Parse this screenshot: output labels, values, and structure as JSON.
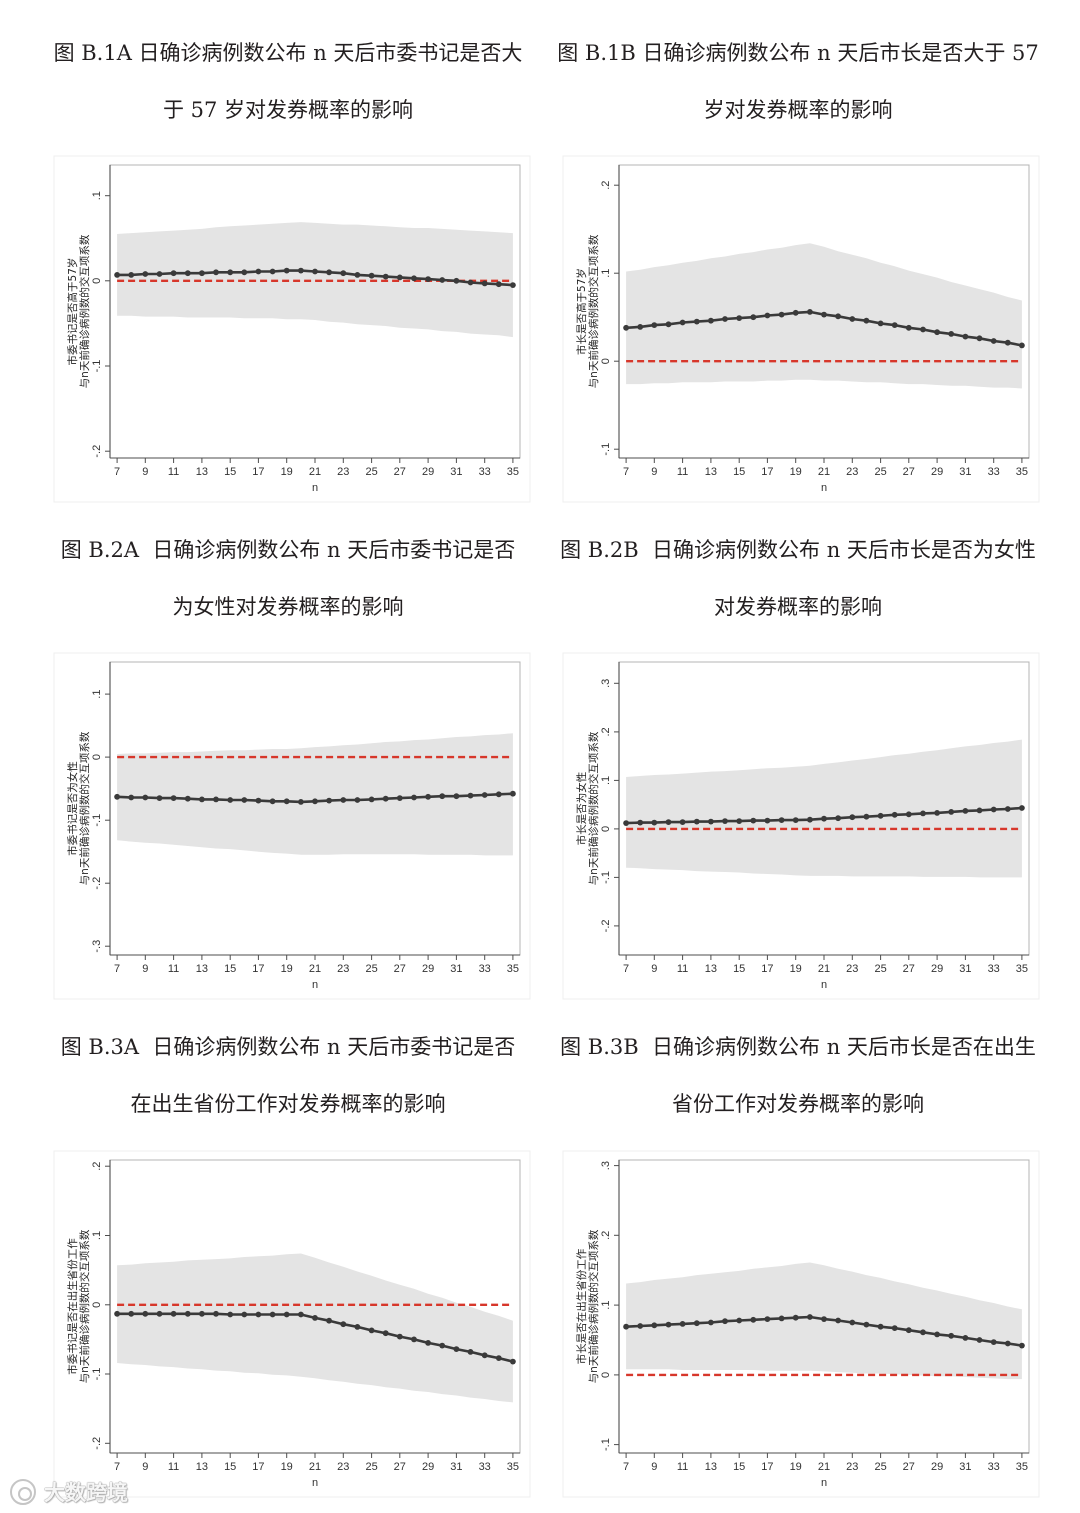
{
  "watermark": "大数跨境",
  "colors": {
    "estimate": "#3a3a3a",
    "ci_band": "#e4e4e4",
    "reference": "#d7372b",
    "axis": "#4d4d4d",
    "plot_frame": "#b4b4b4"
  },
  "chart_data": [
    {
      "type": "line",
      "title_lines": [
        "图 B.1A 日确诊病例数公布 n 天后市委书记是否大",
        "于 57 岁对发券概率的影响"
      ],
      "xlabel": "n",
      "ylabel_lines": [
        "市委书记是否高于57岁",
        "与n天前确诊病例数的交互项系数"
      ],
      "x": [
        7,
        8,
        9,
        10,
        11,
        12,
        13,
        14,
        15,
        16,
        17,
        18,
        19,
        20,
        21,
        22,
        23,
        24,
        25,
        26,
        27,
        28,
        29,
        30,
        31,
        32,
        33,
        34,
        35
      ],
      "xticks": [
        7,
        9,
        11,
        13,
        15,
        17,
        19,
        21,
        23,
        25,
        27,
        29,
        31,
        33,
        35
      ],
      "yticks": [
        {
          "value": 0.1,
          "label": ".1"
        },
        {
          "value": 0,
          "label": "0"
        },
        {
          "value": -0.1,
          "label": "-.1"
        },
        {
          "value": -0.2,
          "label": "-.2"
        }
      ],
      "xlim": [
        6.5,
        35.5
      ],
      "ylim": [
        -0.208,
        0.136
      ],
      "reference_line": 0,
      "series": [
        {
          "values": [
            0.007,
            0.007,
            0.008,
            0.008,
            0.009,
            0.009,
            0.009,
            0.01,
            0.01,
            0.01,
            0.011,
            0.011,
            0.012,
            0.012,
            0.011,
            0.01,
            0.009,
            0.007,
            0.006,
            0.005,
            0.004,
            0.003,
            0.002,
            0.001,
            0.0,
            -0.002,
            -0.003,
            -0.004,
            -0.005
          ],
          "ci_upper": [
            0.055,
            0.056,
            0.057,
            0.058,
            0.059,
            0.06,
            0.061,
            0.063,
            0.064,
            0.065,
            0.066,
            0.067,
            0.068,
            0.069,
            0.068,
            0.067,
            0.066,
            0.066,
            0.065,
            0.064,
            0.063,
            0.062,
            0.062,
            0.061,
            0.06,
            0.059,
            0.058,
            0.057,
            0.056
          ],
          "ci_lower": [
            -0.041,
            -0.041,
            -0.042,
            -0.042,
            -0.042,
            -0.043,
            -0.043,
            -0.043,
            -0.043,
            -0.044,
            -0.044,
            -0.044,
            -0.045,
            -0.045,
            -0.046,
            -0.048,
            -0.049,
            -0.051,
            -0.052,
            -0.053,
            -0.055,
            -0.056,
            -0.057,
            -0.059,
            -0.06,
            -0.062,
            -0.063,
            -0.064,
            -0.066
          ]
        }
      ]
    },
    {
      "type": "line",
      "title_lines": [
        "图 B.1B 日确诊病例数公布 n 天后市长是否大于 57",
        "岁对发券概率的影响"
      ],
      "xlabel": "n",
      "ylabel_lines": [
        "市长是否高于57岁",
        "与n天前确诊病例数的交互项系数"
      ],
      "x": [
        7,
        8,
        9,
        10,
        11,
        12,
        13,
        14,
        15,
        16,
        17,
        18,
        19,
        20,
        21,
        22,
        23,
        24,
        25,
        26,
        27,
        28,
        29,
        30,
        31,
        32,
        33,
        34,
        35
      ],
      "xticks": [
        7,
        9,
        11,
        13,
        15,
        17,
        19,
        21,
        23,
        25,
        27,
        29,
        31,
        33,
        35
      ],
      "yticks": [
        {
          "value": 0.2,
          "label": ".2"
        },
        {
          "value": 0.1,
          "label": ".1"
        },
        {
          "value": 0,
          "label": "0"
        },
        {
          "value": -0.1,
          "label": "-.1"
        }
      ],
      "xlim": [
        6.5,
        35.5
      ],
      "ylim": [
        -0.11,
        0.223
      ],
      "reference_line": 0,
      "series": [
        {
          "values": [
            0.038,
            0.039,
            0.041,
            0.042,
            0.044,
            0.045,
            0.046,
            0.048,
            0.049,
            0.05,
            0.052,
            0.053,
            0.055,
            0.056,
            0.053,
            0.051,
            0.048,
            0.046,
            0.043,
            0.041,
            0.038,
            0.036,
            0.033,
            0.031,
            0.028,
            0.026,
            0.023,
            0.021,
            0.018
          ],
          "ci_upper": [
            0.102,
            0.104,
            0.107,
            0.109,
            0.112,
            0.114,
            0.117,
            0.119,
            0.122,
            0.124,
            0.127,
            0.129,
            0.132,
            0.134,
            0.13,
            0.125,
            0.121,
            0.117,
            0.112,
            0.108,
            0.103,
            0.099,
            0.095,
            0.09,
            0.086,
            0.082,
            0.078,
            0.073,
            0.069
          ],
          "ci_lower": [
            -0.026,
            -0.026,
            -0.025,
            -0.025,
            -0.024,
            -0.024,
            -0.024,
            -0.023,
            -0.023,
            -0.023,
            -0.022,
            -0.022,
            -0.021,
            -0.021,
            -0.022,
            -0.022,
            -0.023,
            -0.024,
            -0.024,
            -0.025,
            -0.026,
            -0.026,
            -0.027,
            -0.028,
            -0.028,
            -0.029,
            -0.03,
            -0.03,
            -0.031
          ]
        }
      ]
    },
    {
      "type": "line",
      "title_lines": [
        "图 B.2A  日确诊病例数公布 n 天后市委书记是否",
        "为女性对发券概率的影响"
      ],
      "xlabel": "n",
      "ylabel_lines": [
        "市委书记是否为女性",
        "与n天前确诊病例数的交互项系数"
      ],
      "x": [
        7,
        8,
        9,
        10,
        11,
        12,
        13,
        14,
        15,
        16,
        17,
        18,
        19,
        20,
        21,
        22,
        23,
        24,
        25,
        26,
        27,
        28,
        29,
        30,
        31,
        32,
        33,
        34,
        35
      ],
      "xticks": [
        7,
        9,
        11,
        13,
        15,
        17,
        19,
        21,
        23,
        25,
        27,
        29,
        31,
        33,
        35
      ],
      "yticks": [
        {
          "value": 0.1,
          "label": ".1"
        },
        {
          "value": 0,
          "label": "0"
        },
        {
          "value": -0.1,
          "label": "-.1"
        },
        {
          "value": -0.2,
          "label": "-.2"
        },
        {
          "value": -0.3,
          "label": "-.3"
        }
      ],
      "xlim": [
        6.5,
        35.5
      ],
      "ylim": [
        -0.314,
        0.151
      ],
      "reference_line": 0,
      "series": [
        {
          "values": [
            -0.063,
            -0.064,
            -0.064,
            -0.065,
            -0.065,
            -0.066,
            -0.067,
            -0.067,
            -0.068,
            -0.068,
            -0.069,
            -0.07,
            -0.07,
            -0.071,
            -0.07,
            -0.069,
            -0.068,
            -0.068,
            -0.067,
            -0.066,
            -0.065,
            -0.064,
            -0.063,
            -0.062,
            -0.062,
            -0.061,
            -0.06,
            -0.059,
            -0.058
          ],
          "ci_upper": [
            0.005,
            0.006,
            0.006,
            0.007,
            0.008,
            0.008,
            0.009,
            0.01,
            0.011,
            0.011,
            0.012,
            0.013,
            0.013,
            0.014,
            0.016,
            0.017,
            0.019,
            0.02,
            0.022,
            0.024,
            0.025,
            0.027,
            0.028,
            0.03,
            0.032,
            0.033,
            0.035,
            0.036,
            0.038
          ],
          "ci_lower": [
            -0.132,
            -0.134,
            -0.136,
            -0.137,
            -0.139,
            -0.141,
            -0.143,
            -0.145,
            -0.146,
            -0.148,
            -0.15,
            -0.152,
            -0.153,
            -0.155,
            -0.155,
            -0.155,
            -0.154,
            -0.154,
            -0.154,
            -0.154,
            -0.154,
            -0.154,
            -0.155,
            -0.155,
            -0.155,
            -0.155,
            -0.156,
            -0.156,
            -0.156
          ]
        }
      ]
    },
    {
      "type": "line",
      "title_lines": [
        "图 B.2B  日确诊病例数公布 n 天后市长是否为女性",
        "对发券概率的影响"
      ],
      "xlabel": "n",
      "ylabel_lines": [
        "市长是否为女性",
        "与n天前确诊病例数的交互项系数"
      ],
      "x": [
        7,
        8,
        9,
        10,
        11,
        12,
        13,
        14,
        15,
        16,
        17,
        18,
        19,
        20,
        21,
        22,
        23,
        24,
        25,
        26,
        27,
        28,
        29,
        30,
        31,
        32,
        33,
        34,
        35
      ],
      "xticks": [
        7,
        9,
        11,
        13,
        15,
        17,
        19,
        21,
        23,
        25,
        27,
        29,
        31,
        33,
        35
      ],
      "yticks": [
        {
          "value": 0.3,
          "label": ".3"
        },
        {
          "value": 0.2,
          "label": ".2"
        },
        {
          "value": 0.1,
          "label": ".1"
        },
        {
          "value": 0,
          "label": "0"
        },
        {
          "value": -0.1,
          "label": "-.1"
        },
        {
          "value": -0.2,
          "label": "-.2"
        }
      ],
      "xlim": [
        6.5,
        35.5
      ],
      "ylim": [
        -0.26,
        0.344
      ],
      "reference_line": 0,
      "series": [
        {
          "values": [
            0.012,
            0.013,
            0.013,
            0.014,
            0.014,
            0.015,
            0.015,
            0.016,
            0.016,
            0.017,
            0.017,
            0.018,
            0.018,
            0.019,
            0.021,
            0.022,
            0.024,
            0.025,
            0.027,
            0.029,
            0.03,
            0.032,
            0.033,
            0.035,
            0.037,
            0.038,
            0.04,
            0.041,
            0.043
          ],
          "ci_upper": [
            0.107,
            0.109,
            0.111,
            0.112,
            0.114,
            0.116,
            0.118,
            0.119,
            0.121,
            0.123,
            0.125,
            0.126,
            0.128,
            0.13,
            0.134,
            0.137,
            0.141,
            0.144,
            0.148,
            0.152,
            0.155,
            0.159,
            0.162,
            0.166,
            0.17,
            0.173,
            0.177,
            0.18,
            0.184
          ],
          "ci_lower": [
            -0.08,
            -0.081,
            -0.083,
            -0.084,
            -0.085,
            -0.087,
            -0.088,
            -0.089,
            -0.09,
            -0.092,
            -0.093,
            -0.094,
            -0.096,
            -0.097,
            -0.097,
            -0.097,
            -0.098,
            -0.098,
            -0.098,
            -0.098,
            -0.098,
            -0.099,
            -0.099,
            -0.099,
            -0.099,
            -0.1,
            -0.1,
            -0.1,
            -0.1
          ]
        }
      ]
    },
    {
      "type": "line",
      "title_lines": [
        "图 B.3A  日确诊病例数公布 n 天后市委书记是否",
        "在出生省份工作对发券概率的影响"
      ],
      "xlabel": "n",
      "ylabel_lines": [
        "市委书记是否在出生省份工作",
        "与n天前确诊病例数的交互项系数"
      ],
      "x": [
        7,
        8,
        9,
        10,
        11,
        12,
        13,
        14,
        15,
        16,
        17,
        18,
        19,
        20,
        21,
        22,
        23,
        24,
        25,
        26,
        27,
        28,
        29,
        30,
        31,
        32,
        33,
        34,
        35
      ],
      "xticks": [
        7,
        9,
        11,
        13,
        15,
        17,
        19,
        21,
        23,
        25,
        27,
        29,
        31,
        33,
        35
      ],
      "yticks": [
        {
          "value": 0.2,
          "label": ".2"
        },
        {
          "value": 0.1,
          "label": ".1"
        },
        {
          "value": 0,
          "label": "0"
        },
        {
          "value": -0.1,
          "label": "-.1"
        },
        {
          "value": -0.2,
          "label": "-.2"
        }
      ],
      "xlim": [
        6.5,
        35.5
      ],
      "ylim": [
        -0.214,
        0.209
      ],
      "reference_line": 0,
      "series": [
        {
          "values": [
            -0.013,
            -0.013,
            -0.013,
            -0.013,
            -0.013,
            -0.013,
            -0.013,
            -0.013,
            -0.014,
            -0.014,
            -0.014,
            -0.014,
            -0.014,
            -0.014,
            -0.019,
            -0.023,
            -0.028,
            -0.032,
            -0.037,
            -0.041,
            -0.046,
            -0.05,
            -0.055,
            -0.059,
            -0.064,
            -0.068,
            -0.073,
            -0.077,
            -0.082
          ],
          "ci_upper": [
            0.057,
            0.058,
            0.06,
            0.061,
            0.062,
            0.064,
            0.065,
            0.066,
            0.067,
            0.069,
            0.07,
            0.071,
            0.073,
            0.074,
            0.068,
            0.061,
            0.055,
            0.048,
            0.042,
            0.035,
            0.029,
            0.023,
            0.016,
            0.01,
            0.003,
            -0.003,
            -0.01,
            -0.016,
            -0.023
          ],
          "ci_lower": [
            -0.084,
            -0.086,
            -0.087,
            -0.089,
            -0.09,
            -0.092,
            -0.093,
            -0.095,
            -0.096,
            -0.098,
            -0.099,
            -0.101,
            -0.102,
            -0.104,
            -0.106,
            -0.109,
            -0.111,
            -0.114,
            -0.116,
            -0.119,
            -0.121,
            -0.124,
            -0.126,
            -0.129,
            -0.131,
            -0.134,
            -0.136,
            -0.139,
            -0.141
          ]
        }
      ]
    },
    {
      "type": "line",
      "title_lines": [
        "图 B.3B  日确诊病例数公布 n 天后市长是否在出生",
        "省份工作对发券概率的影响"
      ],
      "xlabel": "n",
      "ylabel_lines": [
        "市长是否在出生省份工作",
        "与n天前确诊病例数的交互项系数"
      ],
      "x": [
        7,
        8,
        9,
        10,
        11,
        12,
        13,
        14,
        15,
        16,
        17,
        18,
        19,
        20,
        21,
        22,
        23,
        24,
        25,
        26,
        27,
        28,
        29,
        30,
        31,
        32,
        33,
        34,
        35
      ],
      "xticks": [
        7,
        9,
        11,
        13,
        15,
        17,
        19,
        21,
        23,
        25,
        27,
        29,
        31,
        33,
        35
      ],
      "yticks": [
        {
          "value": 0.3,
          "label": ".3"
        },
        {
          "value": 0.2,
          "label": ".2"
        },
        {
          "value": 0.1,
          "label": ".1"
        },
        {
          "value": 0,
          "label": "0"
        },
        {
          "value": -0.1,
          "label": "-.1"
        }
      ],
      "xlim": [
        6.5,
        35.5
      ],
      "ylim": [
        -0.112,
        0.308
      ],
      "reference_line": 0,
      "series": [
        {
          "values": [
            0.069,
            0.07,
            0.071,
            0.072,
            0.073,
            0.074,
            0.075,
            0.077,
            0.078,
            0.079,
            0.08,
            0.081,
            0.082,
            0.083,
            0.08,
            0.078,
            0.075,
            0.072,
            0.069,
            0.067,
            0.064,
            0.061,
            0.058,
            0.056,
            0.053,
            0.05,
            0.047,
            0.045,
            0.042
          ],
          "ci_upper": [
            0.131,
            0.133,
            0.136,
            0.138,
            0.14,
            0.143,
            0.145,
            0.147,
            0.149,
            0.152,
            0.154,
            0.156,
            0.159,
            0.161,
            0.157,
            0.152,
            0.148,
            0.143,
            0.139,
            0.134,
            0.13,
            0.125,
            0.121,
            0.116,
            0.112,
            0.107,
            0.103,
            0.098,
            0.094
          ],
          "ci_lower": [
            0.008,
            0.008,
            0.008,
            0.008,
            0.007,
            0.007,
            0.007,
            0.007,
            0.007,
            0.007,
            0.006,
            0.006,
            0.006,
            0.006,
            0.005,
            0.004,
            0.003,
            0.002,
            0.002,
            0.001,
            0.0,
            -0.001,
            -0.002,
            -0.002,
            -0.003,
            -0.004,
            -0.005,
            -0.006,
            -0.006
          ]
        }
      ]
    }
  ]
}
